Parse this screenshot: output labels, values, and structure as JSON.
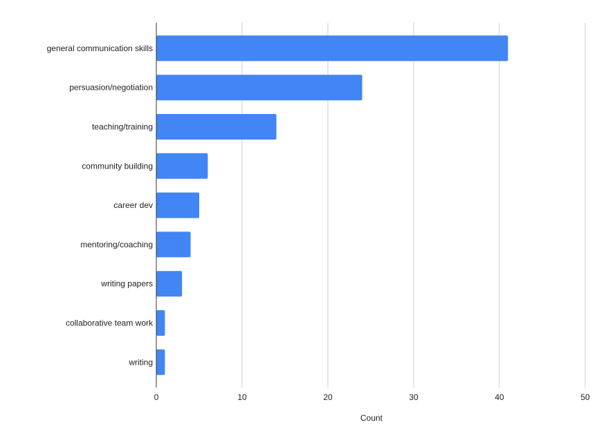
{
  "chart_data": {
    "type": "bar",
    "orientation": "horizontal",
    "categories": [
      "general communication skills",
      "persuasion/negotiation",
      "teaching/training",
      "community building",
      "career dev",
      "mentoring/coaching",
      "writing papers",
      "collaborative team work",
      "writing"
    ],
    "values": [
      41,
      24,
      14,
      6,
      5,
      4,
      3,
      1,
      1
    ],
    "xlabel": "Count",
    "ylabel": "",
    "xlim": [
      0,
      50
    ],
    "xticks": [
      0,
      10,
      20,
      30,
      40,
      50
    ],
    "grid": true,
    "legend": "none",
    "colors": {
      "bar": "#4285f4",
      "grid": "#cccccc",
      "axis": "#333333",
      "text": "#222222"
    }
  }
}
